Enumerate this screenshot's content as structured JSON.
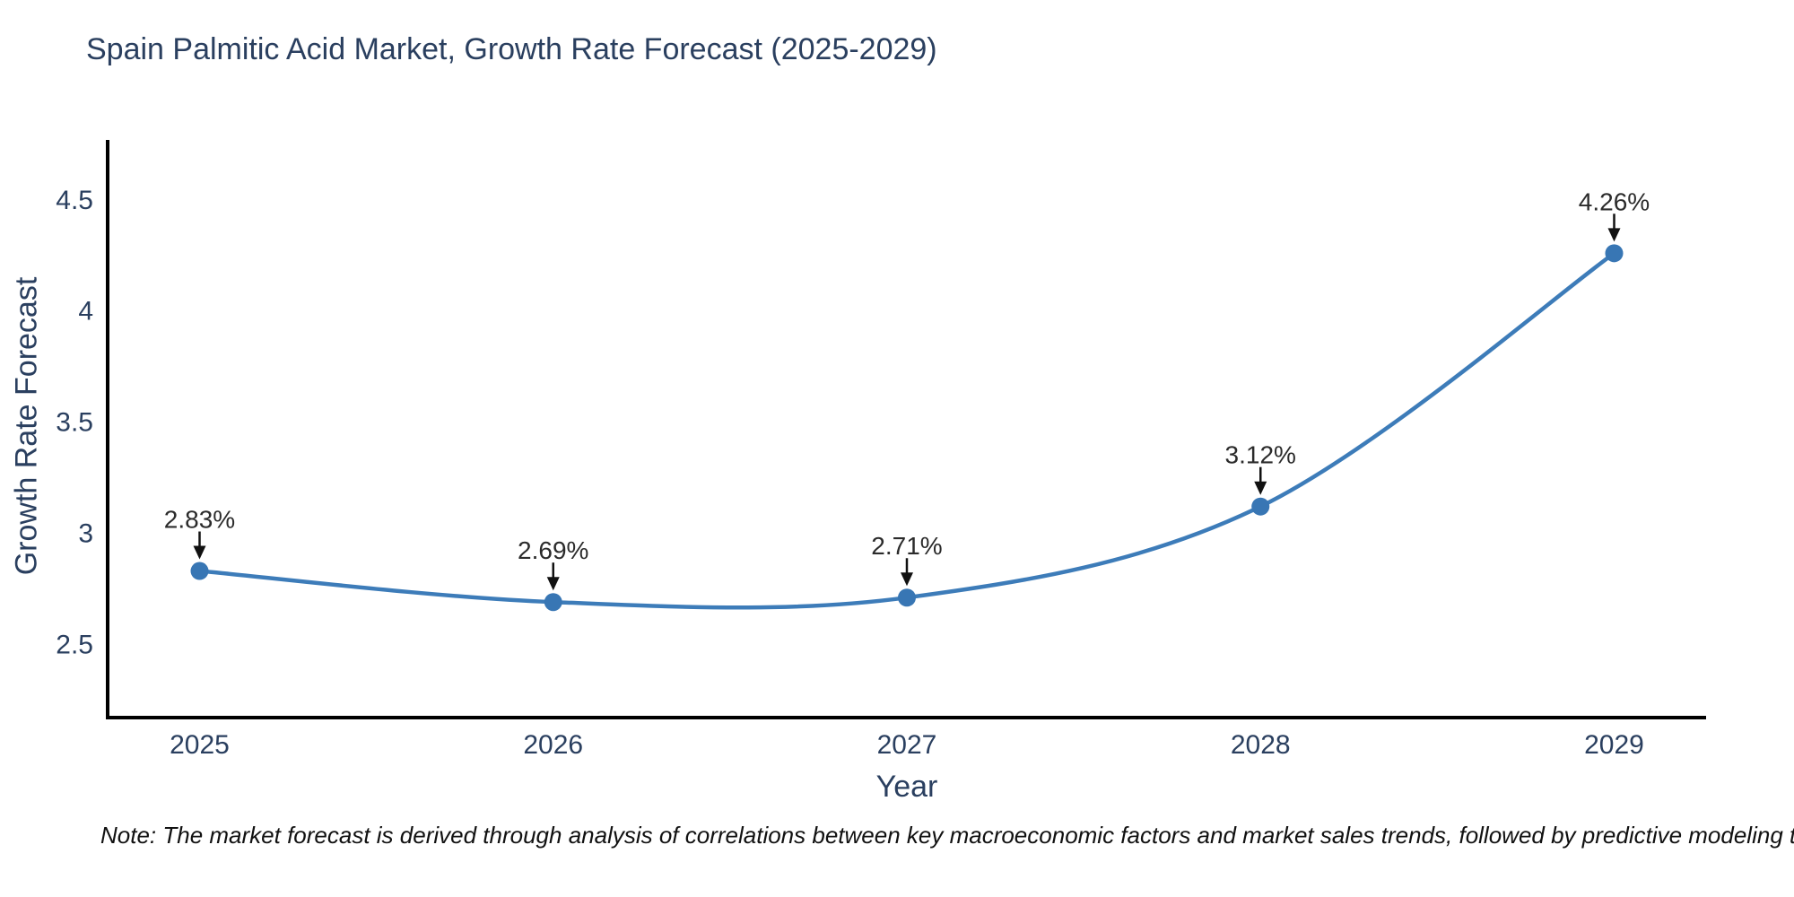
{
  "title": "Spain Palmitic Acid Market, Growth Rate Forecast (2025-2029)",
  "footnote": "Note: The market forecast is derived through analysis of correlations between key macroeconomic factors and market sales trends, followed by predictive modeling to project future sales",
  "colors": {
    "line": "#3d7cb9",
    "marker": "#3876b4",
    "title_text": "#2a3f5f",
    "tick_text": "#2a3f5f",
    "annotation_text": "#2b2b2b",
    "arrow": "#111111",
    "axis_line": "#000000",
    "background": "#ffffff"
  },
  "chart_data": {
    "type": "line",
    "title": "Spain Palmitic Acid Market, Growth Rate Forecast (2025-2029)",
    "x": [
      2025,
      2026,
      2027,
      2028,
      2029
    ],
    "series": [
      {
        "name": "Growth Rate Forecast",
        "values": [
          2.83,
          2.69,
          2.71,
          3.12,
          4.26
        ]
      }
    ],
    "point_labels": [
      "2.83%",
      "2.69%",
      "2.71%",
      "3.12%",
      "4.26%"
    ],
    "xlabel": "Year",
    "ylabel": "Growth Rate Forecast",
    "xticks": [
      2025,
      2026,
      2027,
      2028,
      2029
    ],
    "yticks": [
      2.5,
      3,
      3.5,
      4,
      4.5
    ],
    "xlim": [
      2024.74,
      2029.26
    ],
    "ylim": [
      2.17,
      4.77
    ],
    "grid": false,
    "legend": "none",
    "line_shape": "spline",
    "markers": true,
    "annotations": "value labels with downward arrows above each data point"
  }
}
